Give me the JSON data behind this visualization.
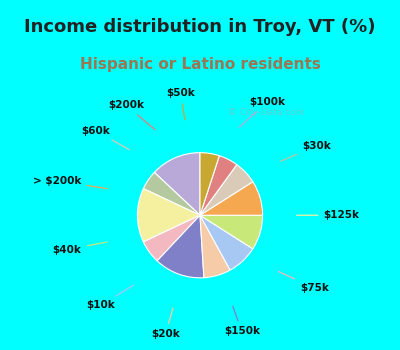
{
  "title": "Income distribution in Troy, VT (%)",
  "subtitle": "Hispanic or Latino residents",
  "watermark": "© City-Data.com",
  "background_outer": "#00FFFF",
  "background_inner": "#e8f2ec",
  "labels": [
    "$100k",
    "$30k",
    "$125k",
    "$75k",
    "$150k",
    "$20k",
    "$10k",
    "$40k",
    "> $200k",
    "$60k",
    "$200k",
    "$50k"
  ],
  "values": [
    13,
    5,
    14,
    6,
    13,
    7,
    8,
    9,
    9,
    6,
    5,
    5
  ],
  "colors": [
    "#b8a9d9",
    "#b5c9a0",
    "#f5f0a0",
    "#f4b8c0",
    "#8080c8",
    "#f5cba8",
    "#a8c8f4",
    "#c8e87a",
    "#f5a850",
    "#d9cbb8",
    "#e08080",
    "#c8a830"
  ],
  "title_fontsize": 13,
  "subtitle_fontsize": 11,
  "title_color": "#222222",
  "subtitle_color": "#997755"
}
